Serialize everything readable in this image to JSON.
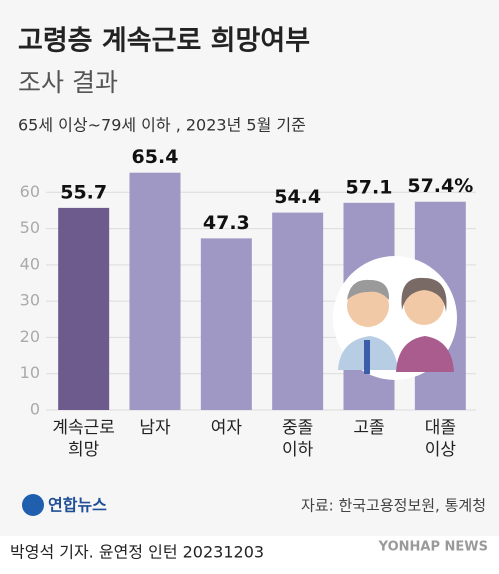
{
  "chart_data": {
    "type": "bar",
    "title": "고령층 계속근로 희망여부",
    "subtitle": "조사 결과",
    "note": "65세 이상~79세 이하 , 2023년 5월 기준",
    "categories": [
      "계속근로\n희망",
      "남자",
      "여자",
      "중졸\n이하",
      "고졸",
      "대졸\n이상"
    ],
    "values": [
      55.7,
      65.4,
      47.3,
      54.4,
      57.1,
      57.4
    ],
    "value_labels": [
      "55.7",
      "65.4",
      "47.3",
      "54.4",
      "57.1",
      "57.4%"
    ],
    "colors": [
      "#6c5b8c",
      "#9f98c4",
      "#9f98c4",
      "#9f98c4",
      "#9f98c4",
      "#9f98c4"
    ],
    "ylim": [
      0,
      70
    ],
    "yticks": [
      0,
      10,
      20,
      30,
      40,
      50,
      60
    ],
    "grid": true
  },
  "footer": {
    "logo": "연합뉴스",
    "source": "자료: 한국고용정보원, 통계청",
    "credit": "박영석 기자. 윤연정 인턴  20231203",
    "watermark": "YONHAP NEWS"
  }
}
